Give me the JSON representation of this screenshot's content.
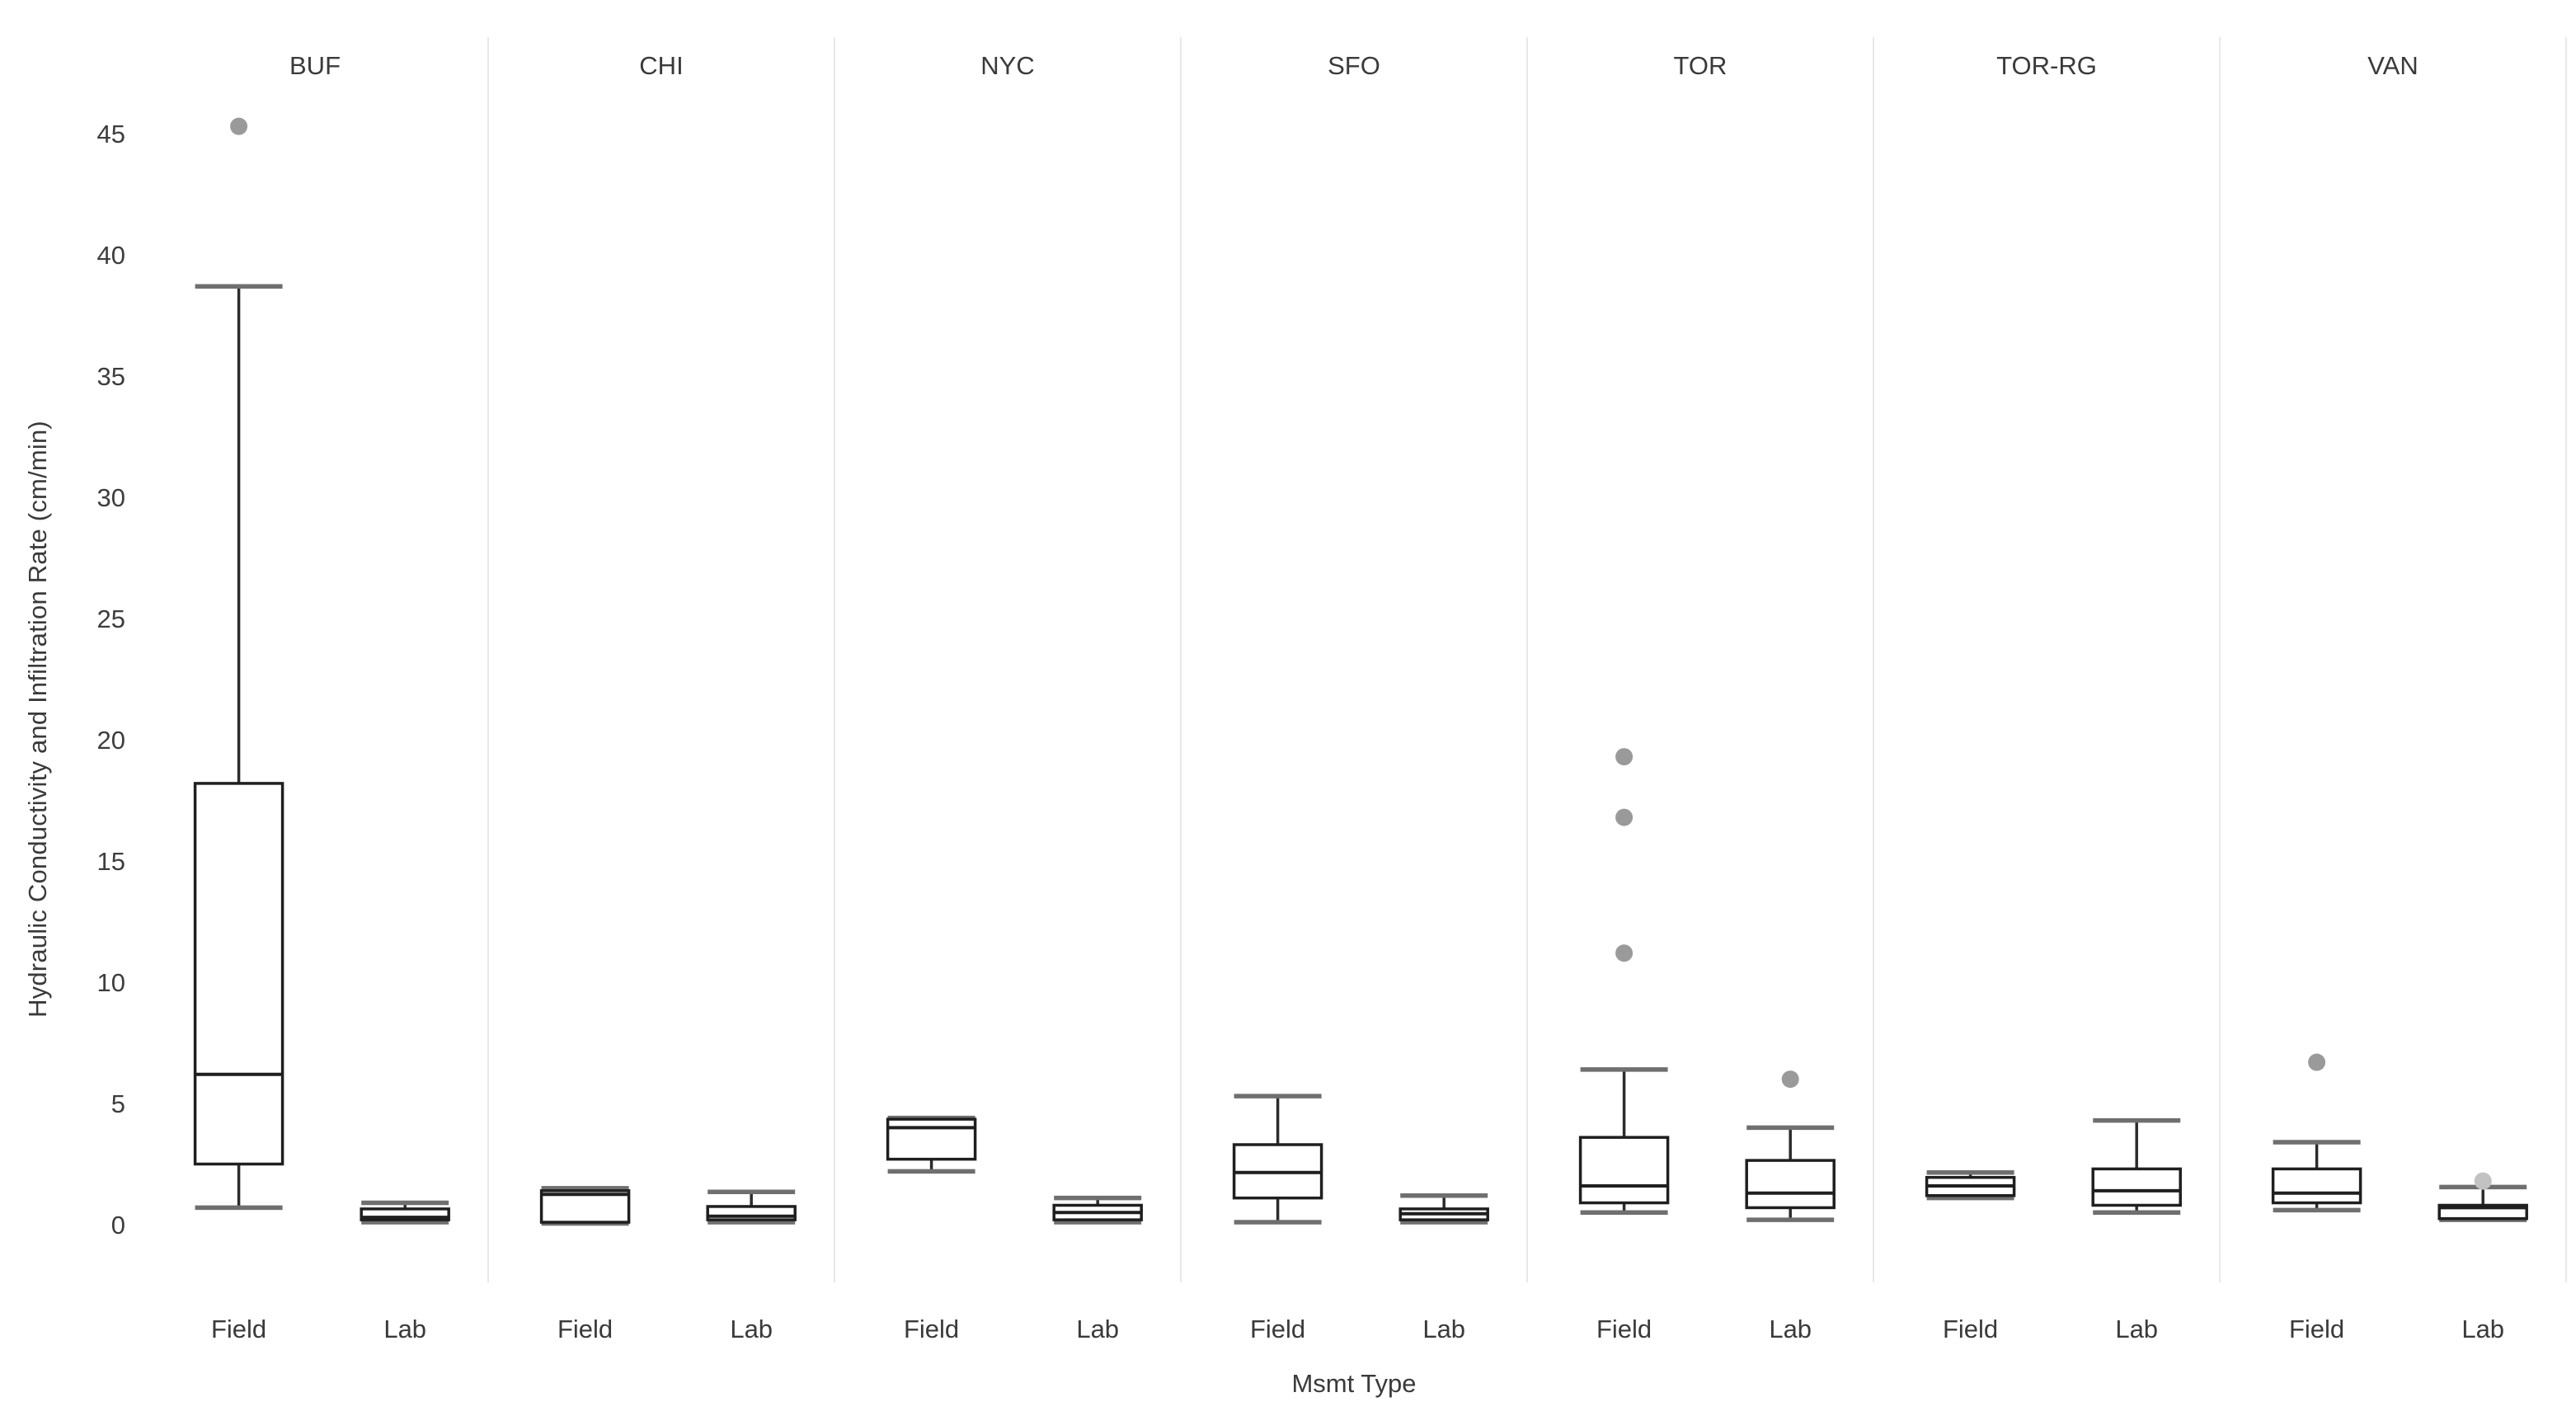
{
  "chart_data": {
    "type": "boxplot",
    "title": "",
    "xlabel": "Msmt Type",
    "ylabel": "Hydraulic Conductivity and Infiltration Rate (cm/min)",
    "facets": [
      "BUF",
      "CHI",
      "NYC",
      "SFO",
      "TOR",
      "TOR-RG",
      "VAN"
    ],
    "categories": [
      "Field",
      "Lab"
    ],
    "yticks": [
      0,
      5,
      10,
      15,
      20,
      25,
      30,
      35,
      40,
      45
    ],
    "ylim": [
      -2.5,
      49.5
    ],
    "grid": "off",
    "legend": "none",
    "series": [
      {
        "facet": "BUF",
        "category": "Field",
        "whisker_low": 0.7,
        "q1": 2.5,
        "median": 6.2,
        "q3": 18.2,
        "whisker_high": 38.7,
        "outliers": [
          45.3
        ]
      },
      {
        "facet": "BUF",
        "category": "Lab",
        "whisker_low": 0.1,
        "q1": 0.2,
        "median": 0.3,
        "q3": 0.65,
        "whisker_high": 0.9,
        "outliers": []
      },
      {
        "facet": "CHI",
        "category": "Field",
        "whisker_low": 0.05,
        "q1": 0.1,
        "median": 1.25,
        "q3": 1.4,
        "whisker_high": 1.5,
        "outliers": []
      },
      {
        "facet": "CHI",
        "category": "Lab",
        "whisker_low": 0.1,
        "q1": 0.2,
        "median": 0.35,
        "q3": 0.75,
        "whisker_high": 1.35,
        "outliers": []
      },
      {
        "facet": "NYC",
        "category": "Field",
        "whisker_low": 2.2,
        "q1": 2.7,
        "median": 4.0,
        "q3": 4.35,
        "whisker_high": 4.4,
        "outliers": []
      },
      {
        "facet": "NYC",
        "category": "Lab",
        "whisker_low": 0.1,
        "q1": 0.2,
        "median": 0.5,
        "q3": 0.8,
        "whisker_high": 1.1,
        "outliers": []
      },
      {
        "facet": "SFO",
        "category": "Field",
        "whisker_low": 0.1,
        "q1": 1.1,
        "median": 2.15,
        "q3": 3.3,
        "whisker_high": 5.3,
        "outliers": []
      },
      {
        "facet": "SFO",
        "category": "Lab",
        "whisker_low": 0.1,
        "q1": 0.2,
        "median": 0.45,
        "q3": 0.65,
        "whisker_high": 1.2,
        "outliers": []
      },
      {
        "facet": "TOR",
        "category": "Field",
        "whisker_low": 0.5,
        "q1": 0.9,
        "median": 1.6,
        "q3": 3.6,
        "whisker_high": 6.4,
        "outliers": [
          19.3,
          16.8,
          11.2
        ]
      },
      {
        "facet": "TOR",
        "category": "Lab",
        "whisker_low": 0.2,
        "q1": 0.7,
        "median": 1.3,
        "q3": 2.65,
        "whisker_high": 4.0,
        "outliers": [
          6.0
        ]
      },
      {
        "facet": "TOR-RG",
        "category": "Field",
        "whisker_low": 1.1,
        "q1": 1.2,
        "median": 1.6,
        "q3": 1.95,
        "whisker_high": 2.15,
        "outliers": []
      },
      {
        "facet": "TOR-RG",
        "category": "Lab",
        "whisker_low": 0.5,
        "q1": 0.8,
        "median": 1.4,
        "q3": 2.3,
        "whisker_high": 4.3,
        "outliers": []
      },
      {
        "facet": "VAN",
        "category": "Field",
        "whisker_low": 0.6,
        "q1": 0.9,
        "median": 1.3,
        "q3": 2.3,
        "whisker_high": 3.4,
        "outliers": [
          6.7
        ]
      },
      {
        "facet": "VAN",
        "category": "Lab",
        "whisker_low": 0.2,
        "q1": 0.25,
        "median": 0.7,
        "q3": 0.8,
        "whisker_high": 1.55,
        "outliers": [
          1.8
        ],
        "outlier_color": "#c2c2c2"
      }
    ],
    "colors": {
      "box_stroke": "#1f1f1f",
      "box_fill": "#ffffff",
      "median": "#1f1f1f",
      "whisker_line": "#2b2b2b",
      "whisker_cap": "#6f6f6f",
      "outlier": "#9a9a9a",
      "separator": "#e8e8e8",
      "text": "#3d3d3d"
    }
  }
}
